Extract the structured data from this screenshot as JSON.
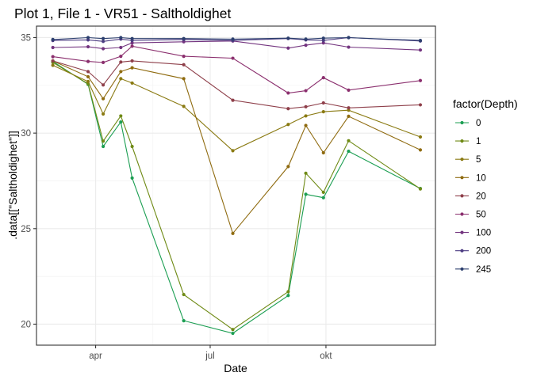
{
  "chart_data": {
    "type": "line",
    "title": "Plot 1, File 1 - VR51  -  Saltholdighet",
    "xlabel": "Date",
    "ylabel": ".data[[\"Saltholdighet\"]]",
    "legend_title": "factor(Depth)",
    "legend_position": "right",
    "grid": true,
    "xlim": [
      "2021-02-13",
      "2021-12-27"
    ],
    "ylim": [
      18.9,
      35.6
    ],
    "x_ticks": [
      {
        "date": "2021-04-01",
        "label": "apr"
      },
      {
        "date": "2021-07-01",
        "label": "jul"
      },
      {
        "date": "2021-10-01",
        "label": "okt"
      }
    ],
    "y_ticks": [
      20,
      25,
      30,
      35
    ],
    "dates": [
      "2021-02-26",
      "2021-03-26",
      "2021-04-07",
      "2021-04-21",
      "2021-04-30",
      "2021-06-10",
      "2021-07-19",
      "2021-09-01",
      "2021-09-15",
      "2021-09-29",
      "2021-10-19",
      "2021-12-15"
    ],
    "series": [
      {
        "name": "0",
        "color": "#1b9e52",
        "values": [
          33.75,
          32.55,
          29.3,
          30.58,
          27.65,
          20.18,
          19.52,
          21.5,
          26.8,
          26.62,
          29.05,
          27.1
        ]
      },
      {
        "name": "1",
        "color": "#6f8a15",
        "values": [
          33.7,
          32.58,
          29.58,
          30.9,
          29.3,
          21.55,
          19.72,
          21.7,
          27.9,
          26.9,
          29.6,
          27.08
        ]
      },
      {
        "name": "5",
        "color": "#8a7a12",
        "values": [
          33.55,
          32.7,
          31.0,
          32.85,
          32.62,
          31.4,
          29.08,
          30.45,
          30.9,
          31.12,
          31.2,
          29.8
        ]
      },
      {
        "name": "10",
        "color": "#8f6b10",
        "values": [
          33.78,
          32.95,
          31.8,
          33.22,
          33.42,
          32.85,
          24.75,
          28.25,
          30.4,
          28.97,
          30.88,
          29.12
        ]
      },
      {
        "name": "20",
        "color": "#8e3f4a",
        "values": [
          33.78,
          33.22,
          32.52,
          33.72,
          33.78,
          33.58,
          31.72,
          31.28,
          31.38,
          31.58,
          31.32,
          31.48
        ]
      },
      {
        "name": "50",
        "color": "#8b2f6e",
        "values": [
          34.0,
          33.75,
          33.7,
          34.02,
          34.55,
          34.02,
          33.92,
          32.1,
          32.22,
          32.9,
          32.25,
          32.75
        ]
      },
      {
        "name": "100",
        "color": "#73347f",
        "values": [
          34.48,
          34.52,
          34.42,
          34.48,
          34.72,
          34.78,
          34.82,
          34.45,
          34.6,
          34.72,
          34.5,
          34.35
        ]
      },
      {
        "name": "200",
        "color": "#4c3c82",
        "values": [
          34.85,
          34.88,
          34.8,
          34.92,
          34.85,
          34.9,
          34.85,
          34.95,
          34.88,
          34.85,
          35.0,
          34.82
        ]
      },
      {
        "name": "245",
        "color": "#2c3f6e",
        "values": [
          34.9,
          35.0,
          34.95,
          35.0,
          34.95,
          34.95,
          34.92,
          34.97,
          34.92,
          34.97,
          35.0,
          34.85
        ]
      }
    ]
  }
}
